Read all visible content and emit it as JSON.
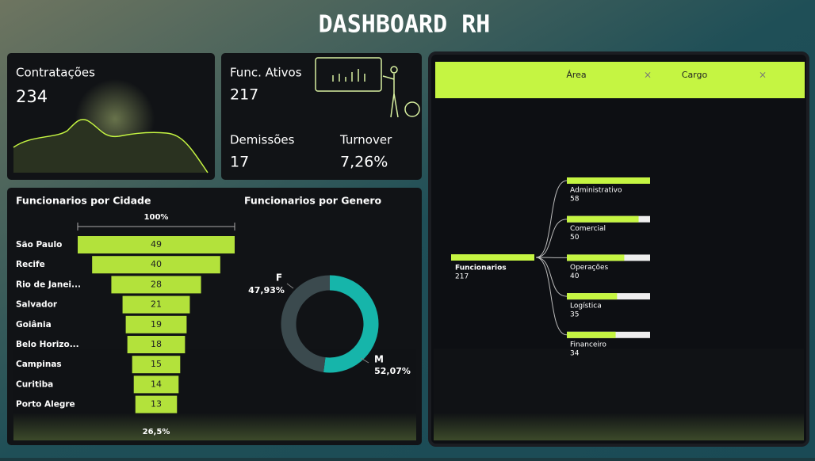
{
  "header": {
    "title": "DASHBOARD RH"
  },
  "kpis": {
    "hires": {
      "label": "Contratações",
      "value": 234
    },
    "active": {
      "label": "Func. Ativos",
      "value": 217
    },
    "dismissals": {
      "label": "Demissões",
      "value": 17
    },
    "turnover": {
      "label": "Turnover",
      "value": "7,26%"
    }
  },
  "funnel": {
    "title": "Funcionarios por Cidade",
    "top_label": "100%",
    "bottom_label": "26,5%",
    "color": "#b3e23b",
    "categories": [
      "São Paulo",
      "Recife",
      "Rio de Janei...",
      "Salvador",
      "Goiânia",
      "Belo Horizo...",
      "Campinas",
      "Curitiba",
      "Porto Alegre"
    ],
    "values": [
      49,
      40,
      28,
      21,
      19,
      18,
      15,
      14,
      13
    ]
  },
  "donut": {
    "title": "Funcionarios por Genero",
    "categories": [
      "F",
      "M"
    ],
    "values": [
      47.93,
      52.07
    ],
    "value_labels": [
      "47,93%",
      "52,07%"
    ],
    "colors": [
      "#3b4a4e",
      "#16b5aa"
    ]
  },
  "tree": {
    "headers": [
      "Área",
      "Cargo"
    ],
    "root": {
      "label": "Funcionarios",
      "value": 217
    },
    "nodes": [
      {
        "label": "Administrativo",
        "value": 58
      },
      {
        "label": "Comercial",
        "value": 50
      },
      {
        "label": "Operações",
        "value": 40
      },
      {
        "label": "Logística",
        "value": 35
      },
      {
        "label": "Financeiro",
        "value": 34
      }
    ]
  }
}
